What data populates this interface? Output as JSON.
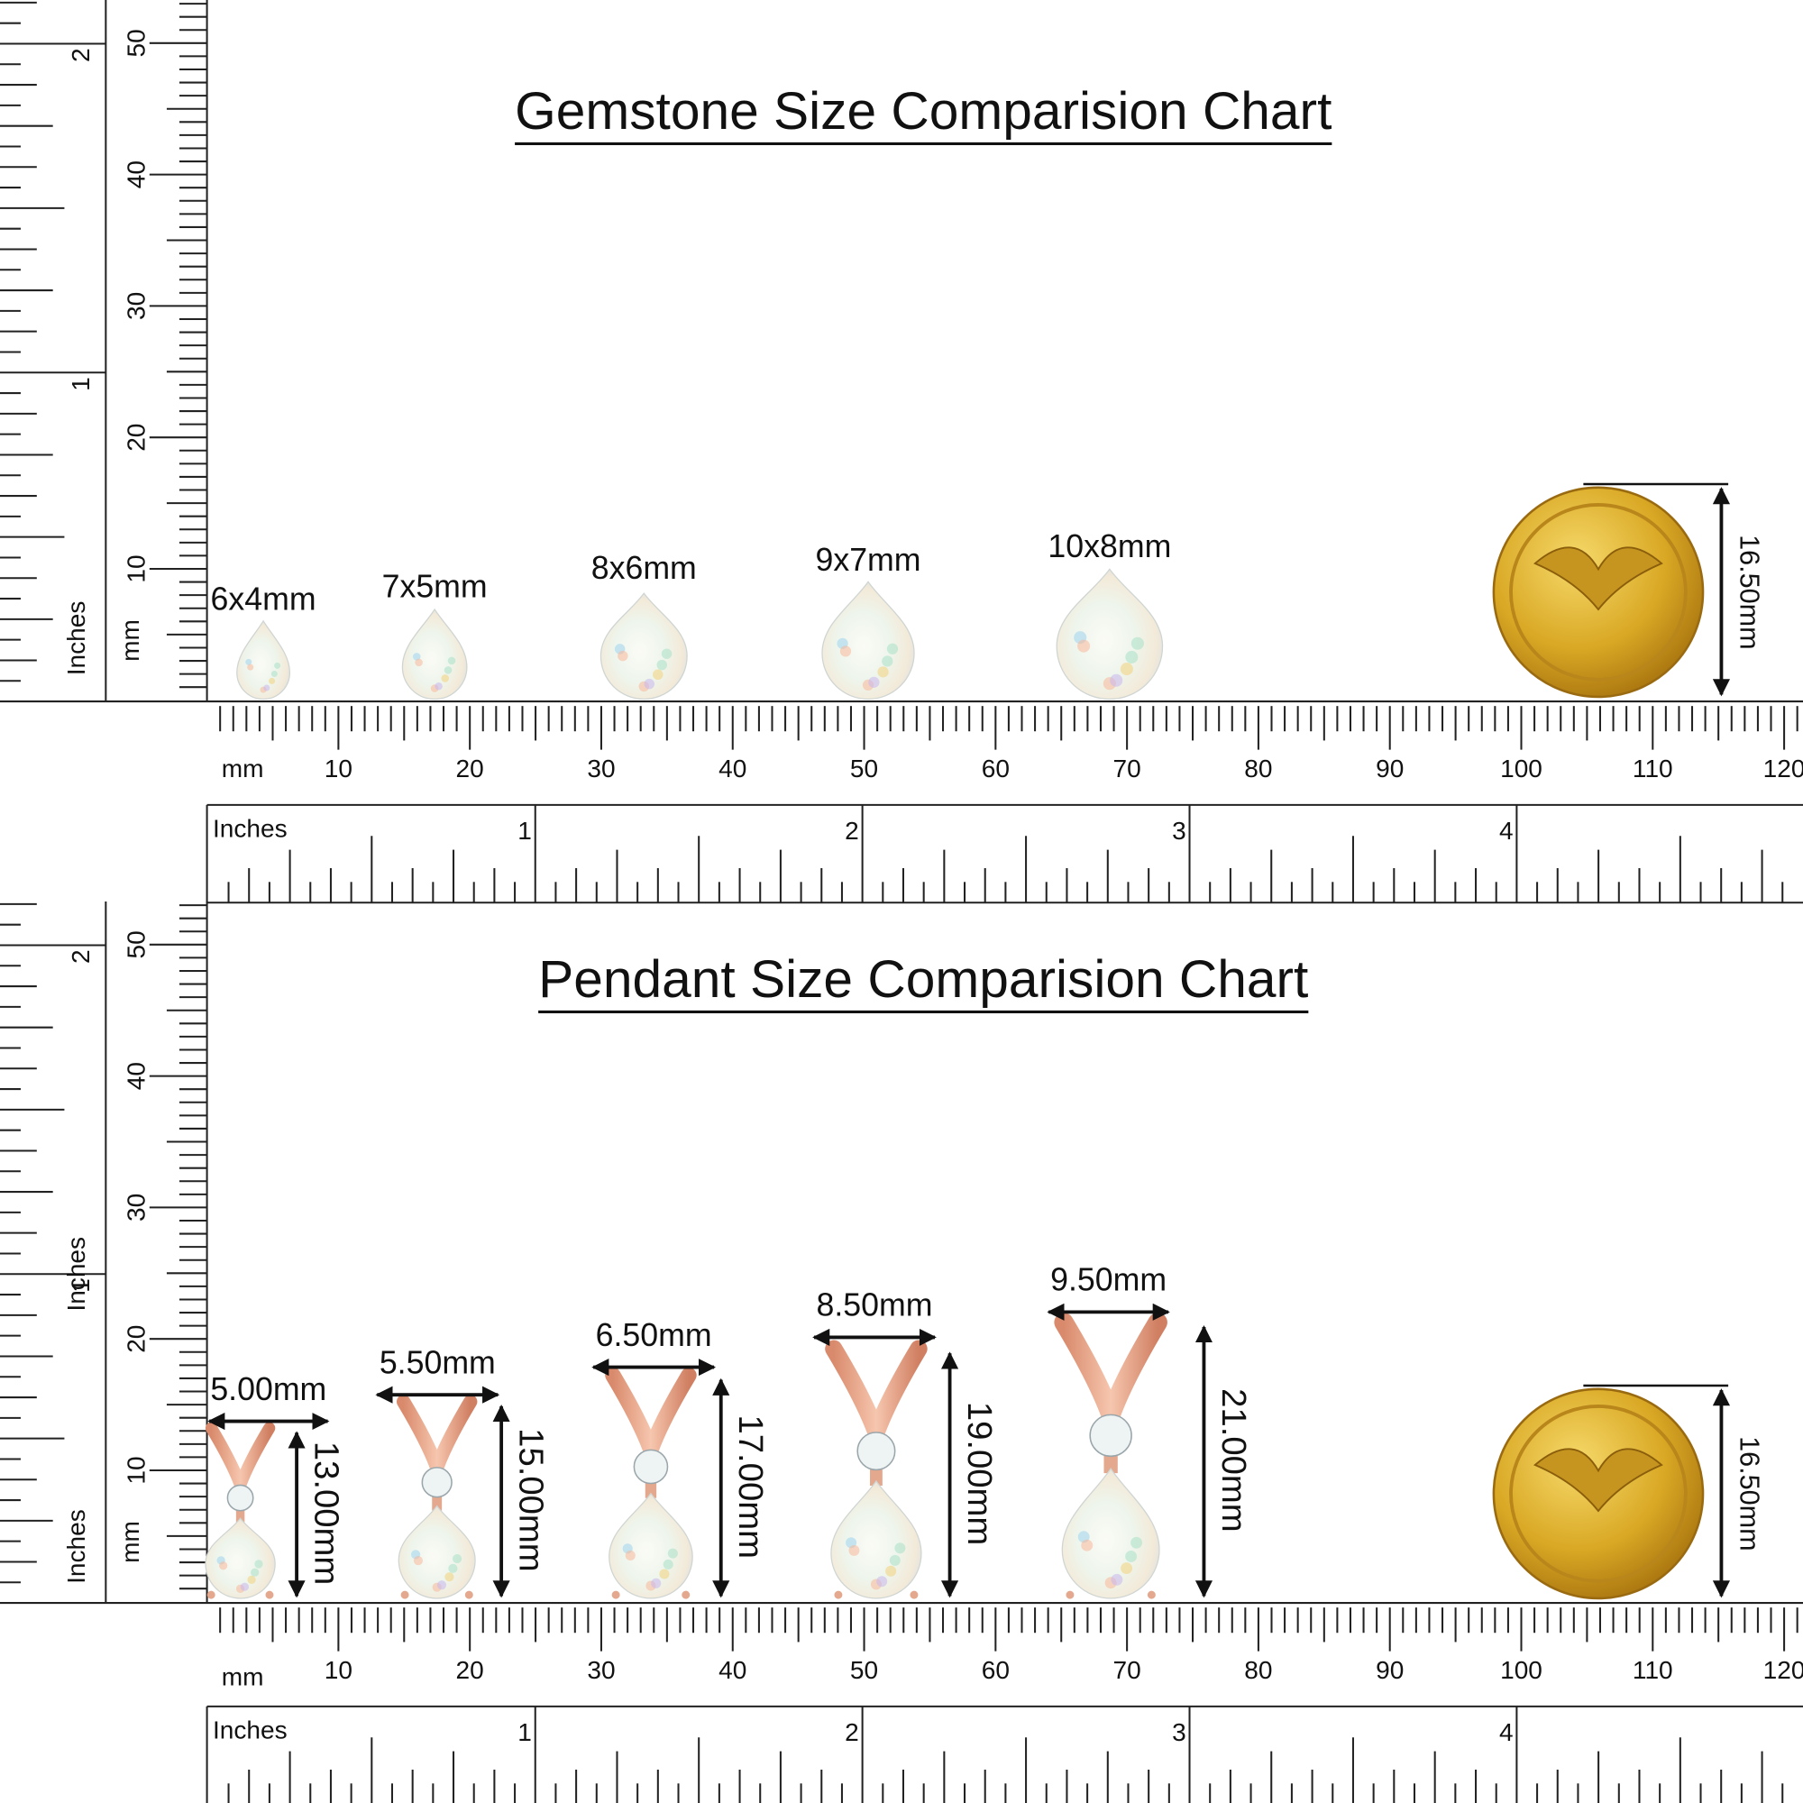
{
  "panels": [
    {
      "title": "Gemstone Size Comparision Chart",
      "items": [
        {
          "size": "6x4mm"
        },
        {
          "size": "7x5mm"
        },
        {
          "size": "8x6mm"
        },
        {
          "size": "9x7mm"
        },
        {
          "size": "10x8mm"
        }
      ],
      "coin": "16.50mm"
    },
    {
      "title": "Pendant Size Comparision Chart",
      "items": [
        {
          "width": "5.00mm",
          "height": "13.00mm"
        },
        {
          "width": "5.50mm",
          "height": "15.00mm"
        },
        {
          "width": "6.50mm",
          "height": "17.00mm"
        },
        {
          "width": "8.50mm",
          "height": "19.00mm"
        },
        {
          "width": "9.50mm",
          "height": "21.00mm"
        }
      ],
      "coin": "16.50mm"
    }
  ],
  "ruler": {
    "mm_label": "mm",
    "inch_label": "Inches",
    "mm_ticks": [
      10,
      20,
      30,
      40,
      50,
      60,
      70,
      80,
      90,
      100,
      110,
      120
    ],
    "inch_ticks": [
      1,
      2,
      3,
      4
    ],
    "vertical_mm_ticks": [
      10,
      20,
      30,
      40,
      50
    ],
    "vertical_inch_ticks": [
      1,
      2
    ]
  }
}
